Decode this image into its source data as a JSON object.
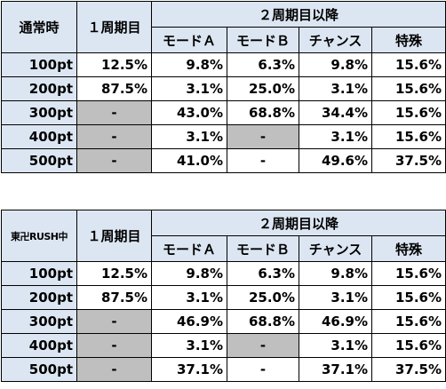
{
  "tables": [
    {
      "corner_label": "通常時",
      "first_cycle_label": "１周期目",
      "second_cycle_label": "２周期目以降",
      "mode_headers": [
        "モードＡ",
        "モードＢ",
        "チャンス",
        "特殊"
      ],
      "rows": [
        {
          "pt": "100pt",
          "cells": [
            {
              "v": "12.5%"
            },
            {
              "v": "9.8%"
            },
            {
              "v": "6.3%"
            },
            {
              "v": "9.8%"
            },
            {
              "v": "15.6%"
            }
          ]
        },
        {
          "pt": "200pt",
          "cells": [
            {
              "v": "87.5%"
            },
            {
              "v": "3.1%"
            },
            {
              "v": "25.0%"
            },
            {
              "v": "3.1%"
            },
            {
              "v": "15.6%"
            }
          ]
        },
        {
          "pt": "300pt",
          "cells": [
            {
              "v": "-",
              "gray": true
            },
            {
              "v": "43.0%"
            },
            {
              "v": "68.8%"
            },
            {
              "v": "34.4%"
            },
            {
              "v": "15.6%"
            }
          ]
        },
        {
          "pt": "400pt",
          "cells": [
            {
              "v": "-",
              "gray": true
            },
            {
              "v": "3.1%"
            },
            {
              "v": "-",
              "gray": true
            },
            {
              "v": "3.1%"
            },
            {
              "v": "15.6%"
            }
          ]
        },
        {
          "pt": "500pt",
          "cells": [
            {
              "v": "-",
              "gray": true
            },
            {
              "v": "41.0%"
            },
            {
              "v": "-",
              "gray": false
            },
            {
              "v": "49.6%"
            },
            {
              "v": "37.5%"
            }
          ]
        }
      ]
    },
    {
      "corner_label": "東卍RUSH中",
      "first_cycle_label": "１周期目",
      "second_cycle_label": "２周期目以降",
      "mode_headers": [
        "モードＡ",
        "モードＢ",
        "チャンス",
        "特殊"
      ],
      "rows": [
        {
          "pt": "100pt",
          "cells": [
            {
              "v": "12.5%"
            },
            {
              "v": "9.8%"
            },
            {
              "v": "6.3%"
            },
            {
              "v": "9.8%"
            },
            {
              "v": "15.6%"
            }
          ]
        },
        {
          "pt": "200pt",
          "cells": [
            {
              "v": "87.5%"
            },
            {
              "v": "3.1%"
            },
            {
              "v": "25.0%"
            },
            {
              "v": "3.1%"
            },
            {
              "v": "15.6%"
            }
          ]
        },
        {
          "pt": "300pt",
          "cells": [
            {
              "v": "-",
              "gray": true
            },
            {
              "v": "46.9%"
            },
            {
              "v": "68.8%"
            },
            {
              "v": "46.9%"
            },
            {
              "v": "15.6%"
            }
          ]
        },
        {
          "pt": "400pt",
          "cells": [
            {
              "v": "-",
              "gray": true
            },
            {
              "v": "3.1%"
            },
            {
              "v": "-",
              "gray": true
            },
            {
              "v": "3.1%"
            },
            {
              "v": "15.6%"
            }
          ]
        },
        {
          "pt": "500pt",
          "cells": [
            {
              "v": "-",
              "gray": true
            },
            {
              "v": "37.1%"
            },
            {
              "v": "-",
              "gray": false
            },
            {
              "v": "37.1%"
            },
            {
              "v": "37.5%"
            }
          ]
        }
      ]
    }
  ],
  "colors": {
    "header_fill": "#dce6f2",
    "blank_fill": "#bfbfbf",
    "border": "#000000"
  }
}
